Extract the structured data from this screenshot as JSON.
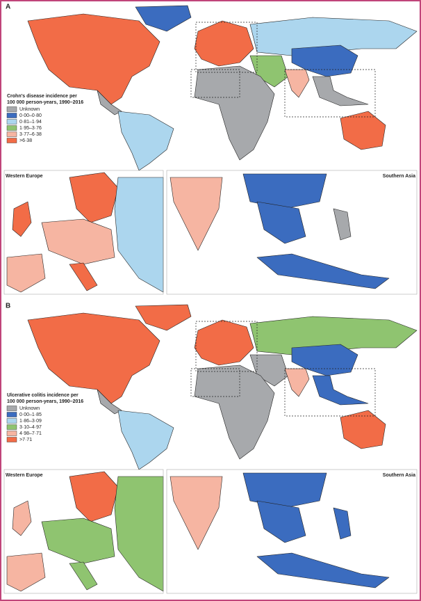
{
  "panels": [
    {
      "label": "A",
      "legend": {
        "title": [
          "Crohn's disease incidence per",
          "100 000 person-years, 1990–2016"
        ],
        "items": [
          {
            "label": "Unknown",
            "color": "#a7a9ac"
          },
          {
            "label": "0·00–0·80",
            "color": "#3b6cbf"
          },
          {
            "label": "0·81–1·94",
            "color": "#acd6ee"
          },
          {
            "label": "1·95–3·76",
            "color": "#8fc470"
          },
          {
            "label": "3·77–6·38",
            "color": "#f6b5a2"
          },
          {
            "label": ">6·38",
            "color": "#f26c47"
          }
        ]
      },
      "insets": [
        "Western Europe",
        "Southern Asia"
      ]
    },
    {
      "label": "B",
      "legend": {
        "title": [
          "Ulcerative colitis incidence per",
          "100 000 person-years, 1990–2016"
        ],
        "items": [
          {
            "label": "Unknown",
            "color": "#a7a9ac"
          },
          {
            "label": "0·00–1·85",
            "color": "#3b6cbf"
          },
          {
            "label": "1·86–3·09",
            "color": "#acd6ee"
          },
          {
            "label": "3·10–4·97",
            "color": "#8fc470"
          },
          {
            "label": "4·98–7·71",
            "color": "#f6b5a2"
          },
          {
            "label": ">7·71",
            "color": "#f26c47"
          }
        ]
      },
      "insets": [
        "Western Europe",
        "Southern Asia"
      ]
    }
  ]
}
